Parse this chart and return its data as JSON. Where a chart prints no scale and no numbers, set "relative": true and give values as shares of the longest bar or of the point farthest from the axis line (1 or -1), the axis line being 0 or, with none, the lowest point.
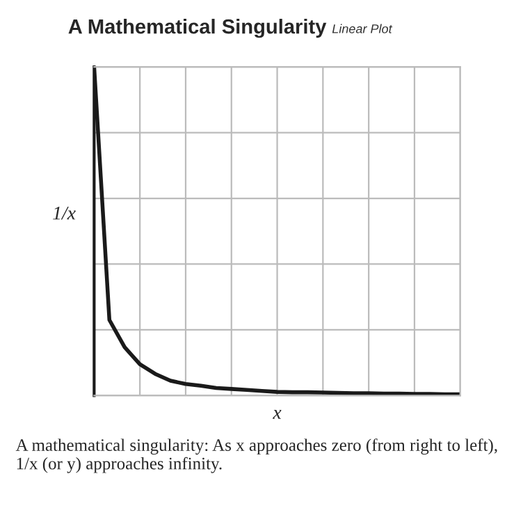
{
  "chart_data": {
    "type": "line",
    "title": "A Mathematical Singularity",
    "subtitle": "Linear Plot",
    "xlabel": "x",
    "ylabel": "1/x",
    "annotations": [
      "A mathematical singularity: As x approaches zero (from right to left), 1/x (or y) approaches infinity."
    ],
    "relative": true,
    "grid": true,
    "categories": [
      null,
      null,
      null,
      null,
      null,
      null,
      null,
      null,
      null,
      null,
      null,
      null,
      null,
      null,
      null,
      null,
      null,
      null,
      null,
      null,
      null,
      null,
      null,
      null,
      null
    ],
    "series": [
      {
        "color": "#1a1a1a",
        "values": [
          1.0,
          0.23,
          0.147,
          0.095,
          0.066,
          0.045,
          0.035,
          0.03,
          0.023,
          0.02,
          0.017,
          0.014,
          0.011,
          0.01,
          0.01,
          0.009,
          0.008,
          0.007,
          0.007,
          0.006,
          0.006,
          0.005,
          0.005,
          0.004,
          0.004
        ]
      }
    ]
  }
}
